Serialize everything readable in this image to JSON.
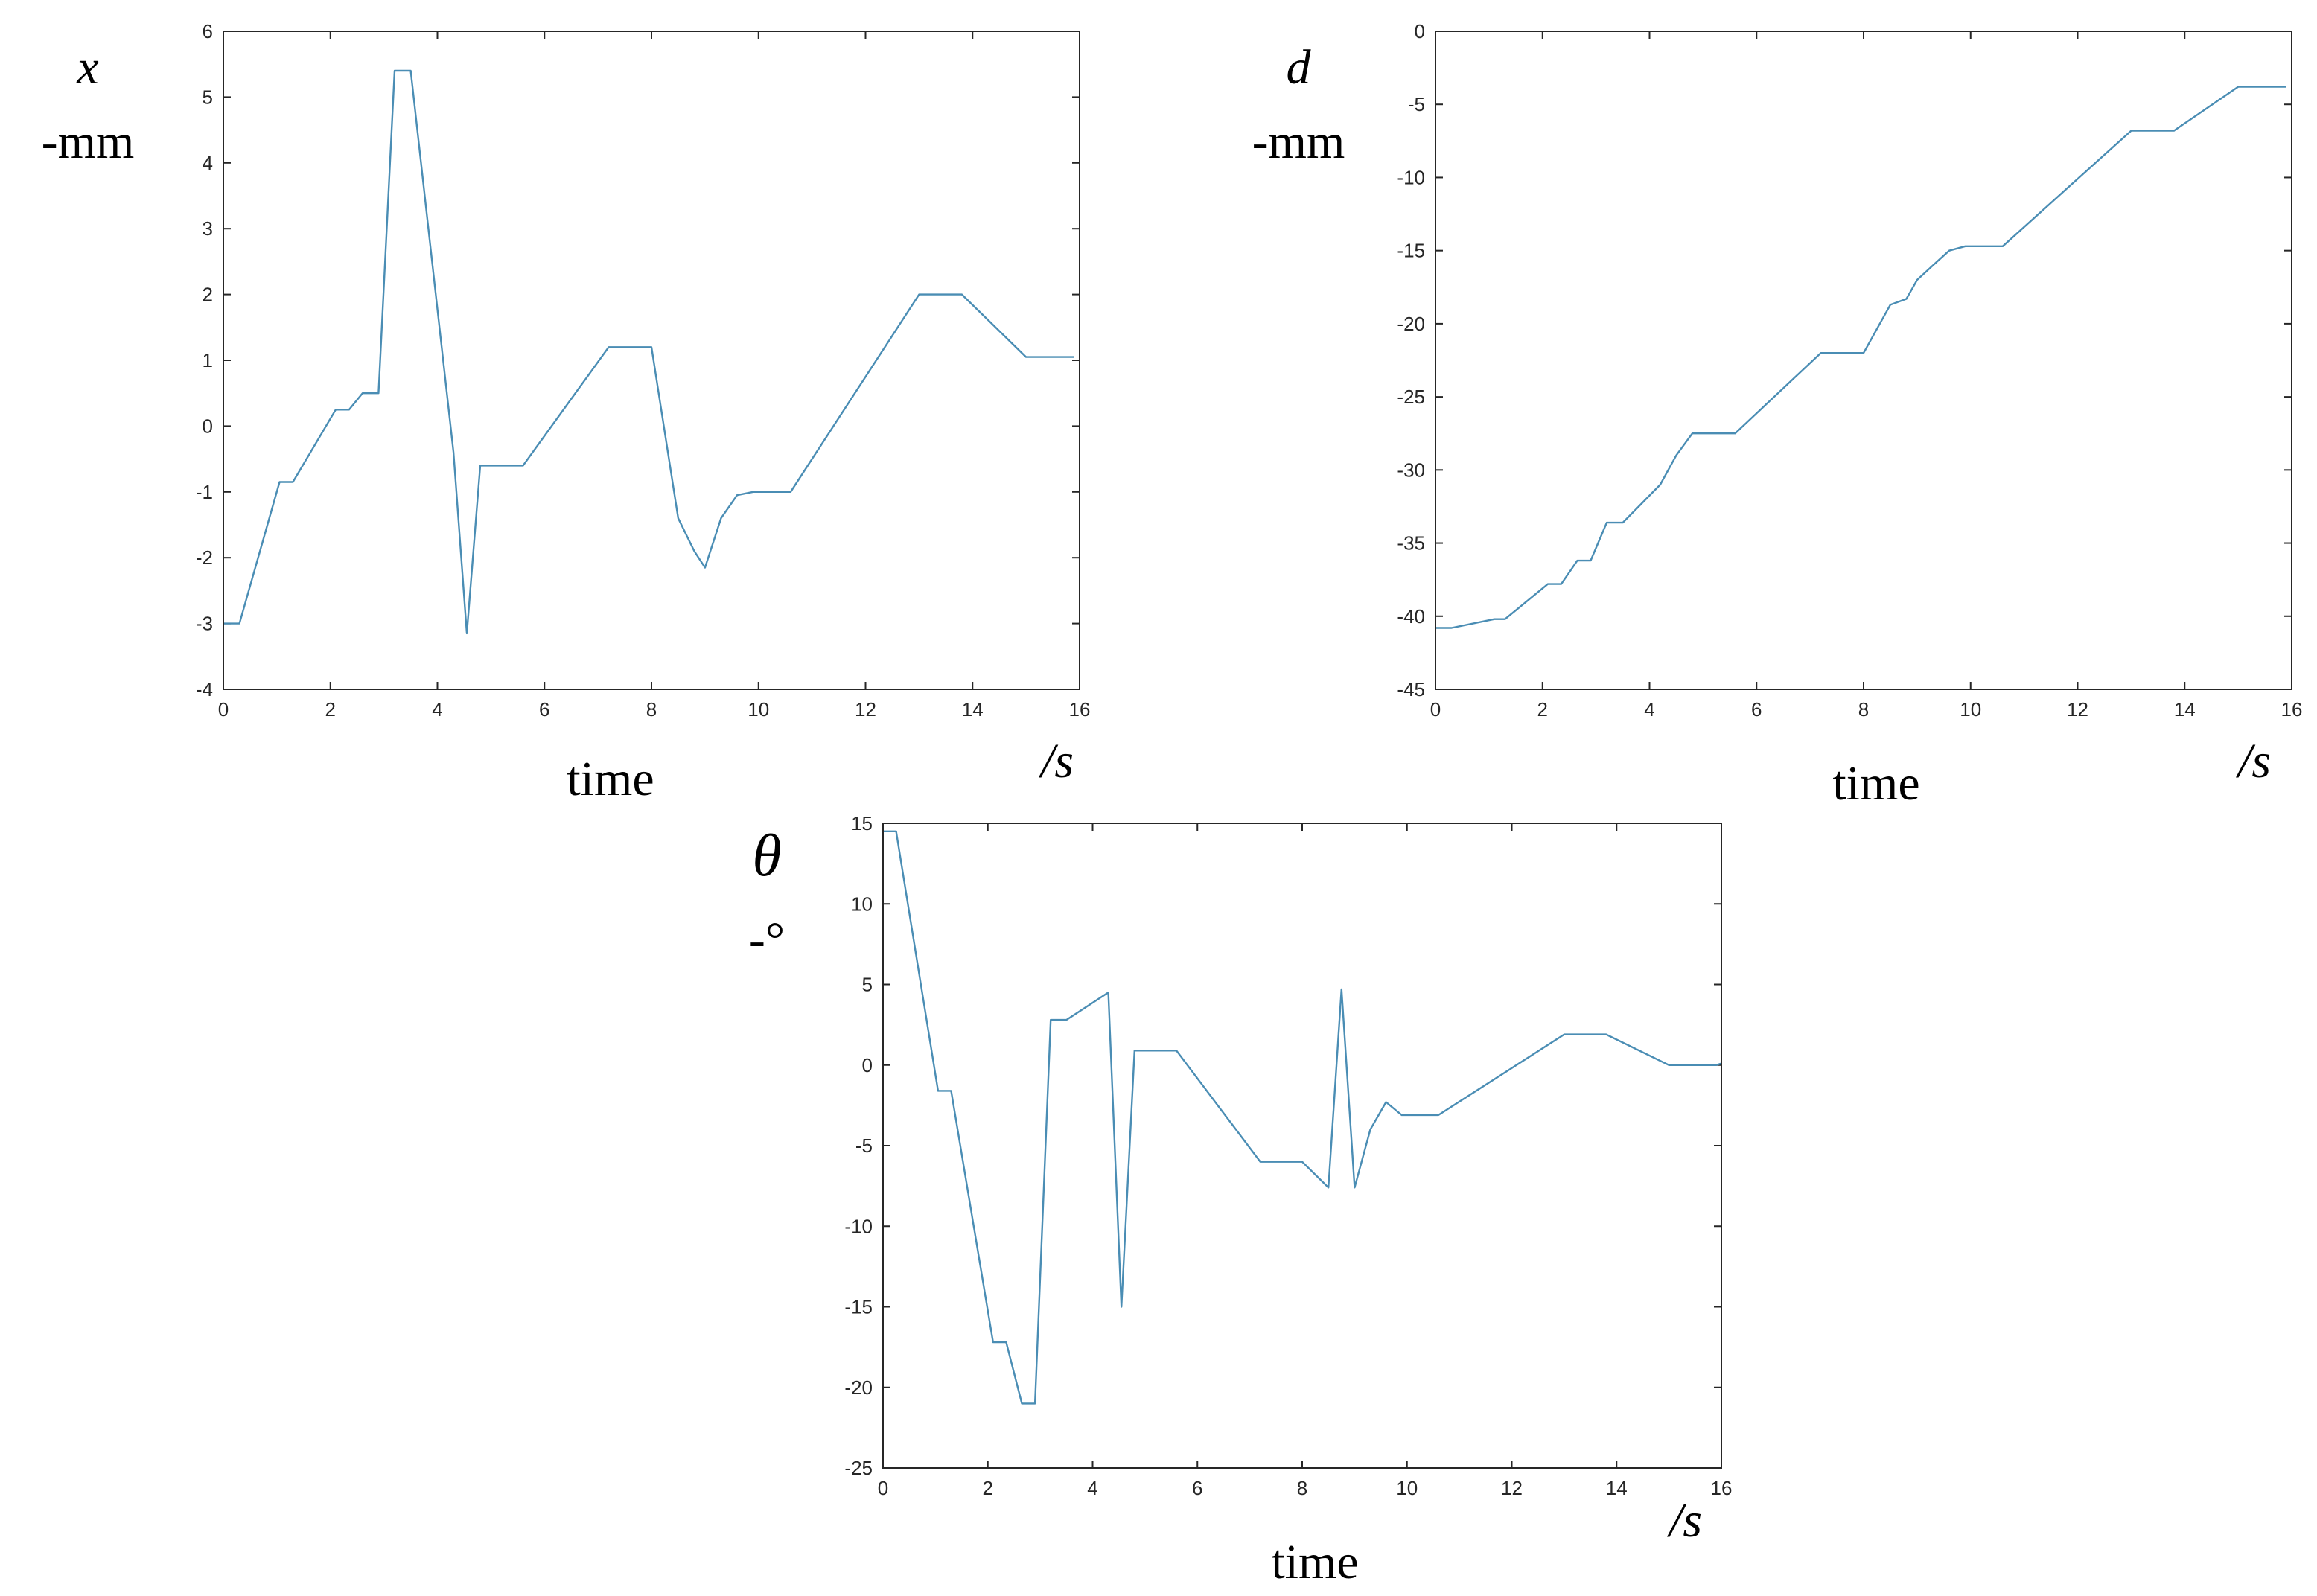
{
  "colors": {
    "line": "#4a8db4",
    "axis": "#262626"
  },
  "chart_data": [
    {
      "type": "line",
      "ylabel_symbol": "x",
      "ylabel_unit": "-mm",
      "xlabel": "time",
      "xunit": "/s",
      "xlim": [
        0,
        16
      ],
      "ylim": [
        -4,
        6
      ],
      "xticks": [
        0,
        2,
        4,
        6,
        8,
        10,
        12,
        14,
        16
      ],
      "yticks": [
        -4,
        -3,
        -2,
        -1,
        0,
        1,
        2,
        3,
        4,
        5,
        6
      ],
      "grid": false,
      "x": [
        0,
        0.3,
        1.05,
        1.3,
        2.1,
        2.35,
        2.6,
        2.9,
        3.2,
        3.5,
        4.3,
        4.55,
        4.8,
        5.6,
        7.2,
        8.0,
        8.5,
        8.8,
        9.0,
        9.3,
        9.6,
        9.9,
        10.6,
        13.0,
        13.8,
        15.0,
        15.9
      ],
      "y": [
        -3.0,
        -3.0,
        -0.85,
        -0.85,
        0.25,
        0.25,
        0.5,
        0.5,
        5.4,
        5.4,
        -0.4,
        -3.15,
        -0.6,
        -0.6,
        1.2,
        1.2,
        -1.4,
        -1.9,
        -2.15,
        -1.4,
        -1.05,
        -1.0,
        -1.0,
        2.0,
        2.0,
        1.05,
        1.05
      ]
    },
    {
      "type": "line",
      "ylabel_symbol": "d",
      "ylabel_unit": "-mm",
      "xlabel": "time",
      "xunit": "/s",
      "xlim": [
        0,
        16
      ],
      "ylim": [
        -45,
        0
      ],
      "xticks": [
        0,
        2,
        4,
        6,
        8,
        10,
        12,
        14,
        16
      ],
      "yticks": [
        -45,
        -40,
        -35,
        -30,
        -25,
        -20,
        -15,
        -10,
        -5,
        0
      ],
      "grid": false,
      "x": [
        0,
        0.3,
        1.1,
        1.3,
        2.1,
        2.35,
        2.65,
        2.9,
        3.2,
        3.5,
        4.2,
        4.5,
        4.8,
        5.6,
        7.2,
        8.0,
        8.5,
        8.8,
        9.0,
        9.3,
        9.6,
        9.9,
        10.6,
        13.0,
        13.8,
        15.0,
        15.9
      ],
      "y": [
        -40.8,
        -40.8,
        -40.2,
        -40.2,
        -37.8,
        -37.8,
        -36.2,
        -36.2,
        -33.6,
        -33.6,
        -31.0,
        -29.0,
        -27.5,
        -27.5,
        -22.0,
        -22.0,
        -18.7,
        -18.3,
        -17.0,
        -16.0,
        -15.0,
        -14.7,
        -14.7,
        -6.8,
        -6.8,
        -3.8,
        -3.8
      ]
    },
    {
      "type": "line",
      "ylabel_symbol": "θ",
      "ylabel_unit": "-°",
      "xlabel": "time",
      "xunit": "/s",
      "xlim": [
        0,
        16
      ],
      "ylim": [
        -25,
        15
      ],
      "xticks": [
        0,
        2,
        4,
        6,
        8,
        10,
        12,
        14,
        16
      ],
      "yticks": [
        -25,
        -20,
        -15,
        -10,
        -5,
        0,
        5,
        10,
        15
      ],
      "grid": false,
      "x": [
        0,
        0.25,
        1.05,
        1.3,
        2.1,
        2.35,
        2.65,
        2.9,
        3.2,
        3.5,
        4.3,
        4.55,
        4.8,
        5.6,
        7.2,
        8.0,
        8.5,
        8.75,
        9.0,
        9.3,
        9.6,
        9.9,
        10.6,
        13.0,
        13.8,
        15.0,
        15.9,
        16.0
      ],
      "y": [
        14.5,
        14.5,
        -1.6,
        -1.6,
        -17.2,
        -17.2,
        -21.0,
        -21.0,
        2.8,
        2.8,
        4.5,
        -15.0,
        0.9,
        0.9,
        -6.0,
        -6.0,
        -7.6,
        4.7,
        -7.6,
        -4.0,
        -2.3,
        -3.1,
        -3.1,
        1.9,
        1.9,
        0,
        0,
        0.1
      ]
    }
  ]
}
